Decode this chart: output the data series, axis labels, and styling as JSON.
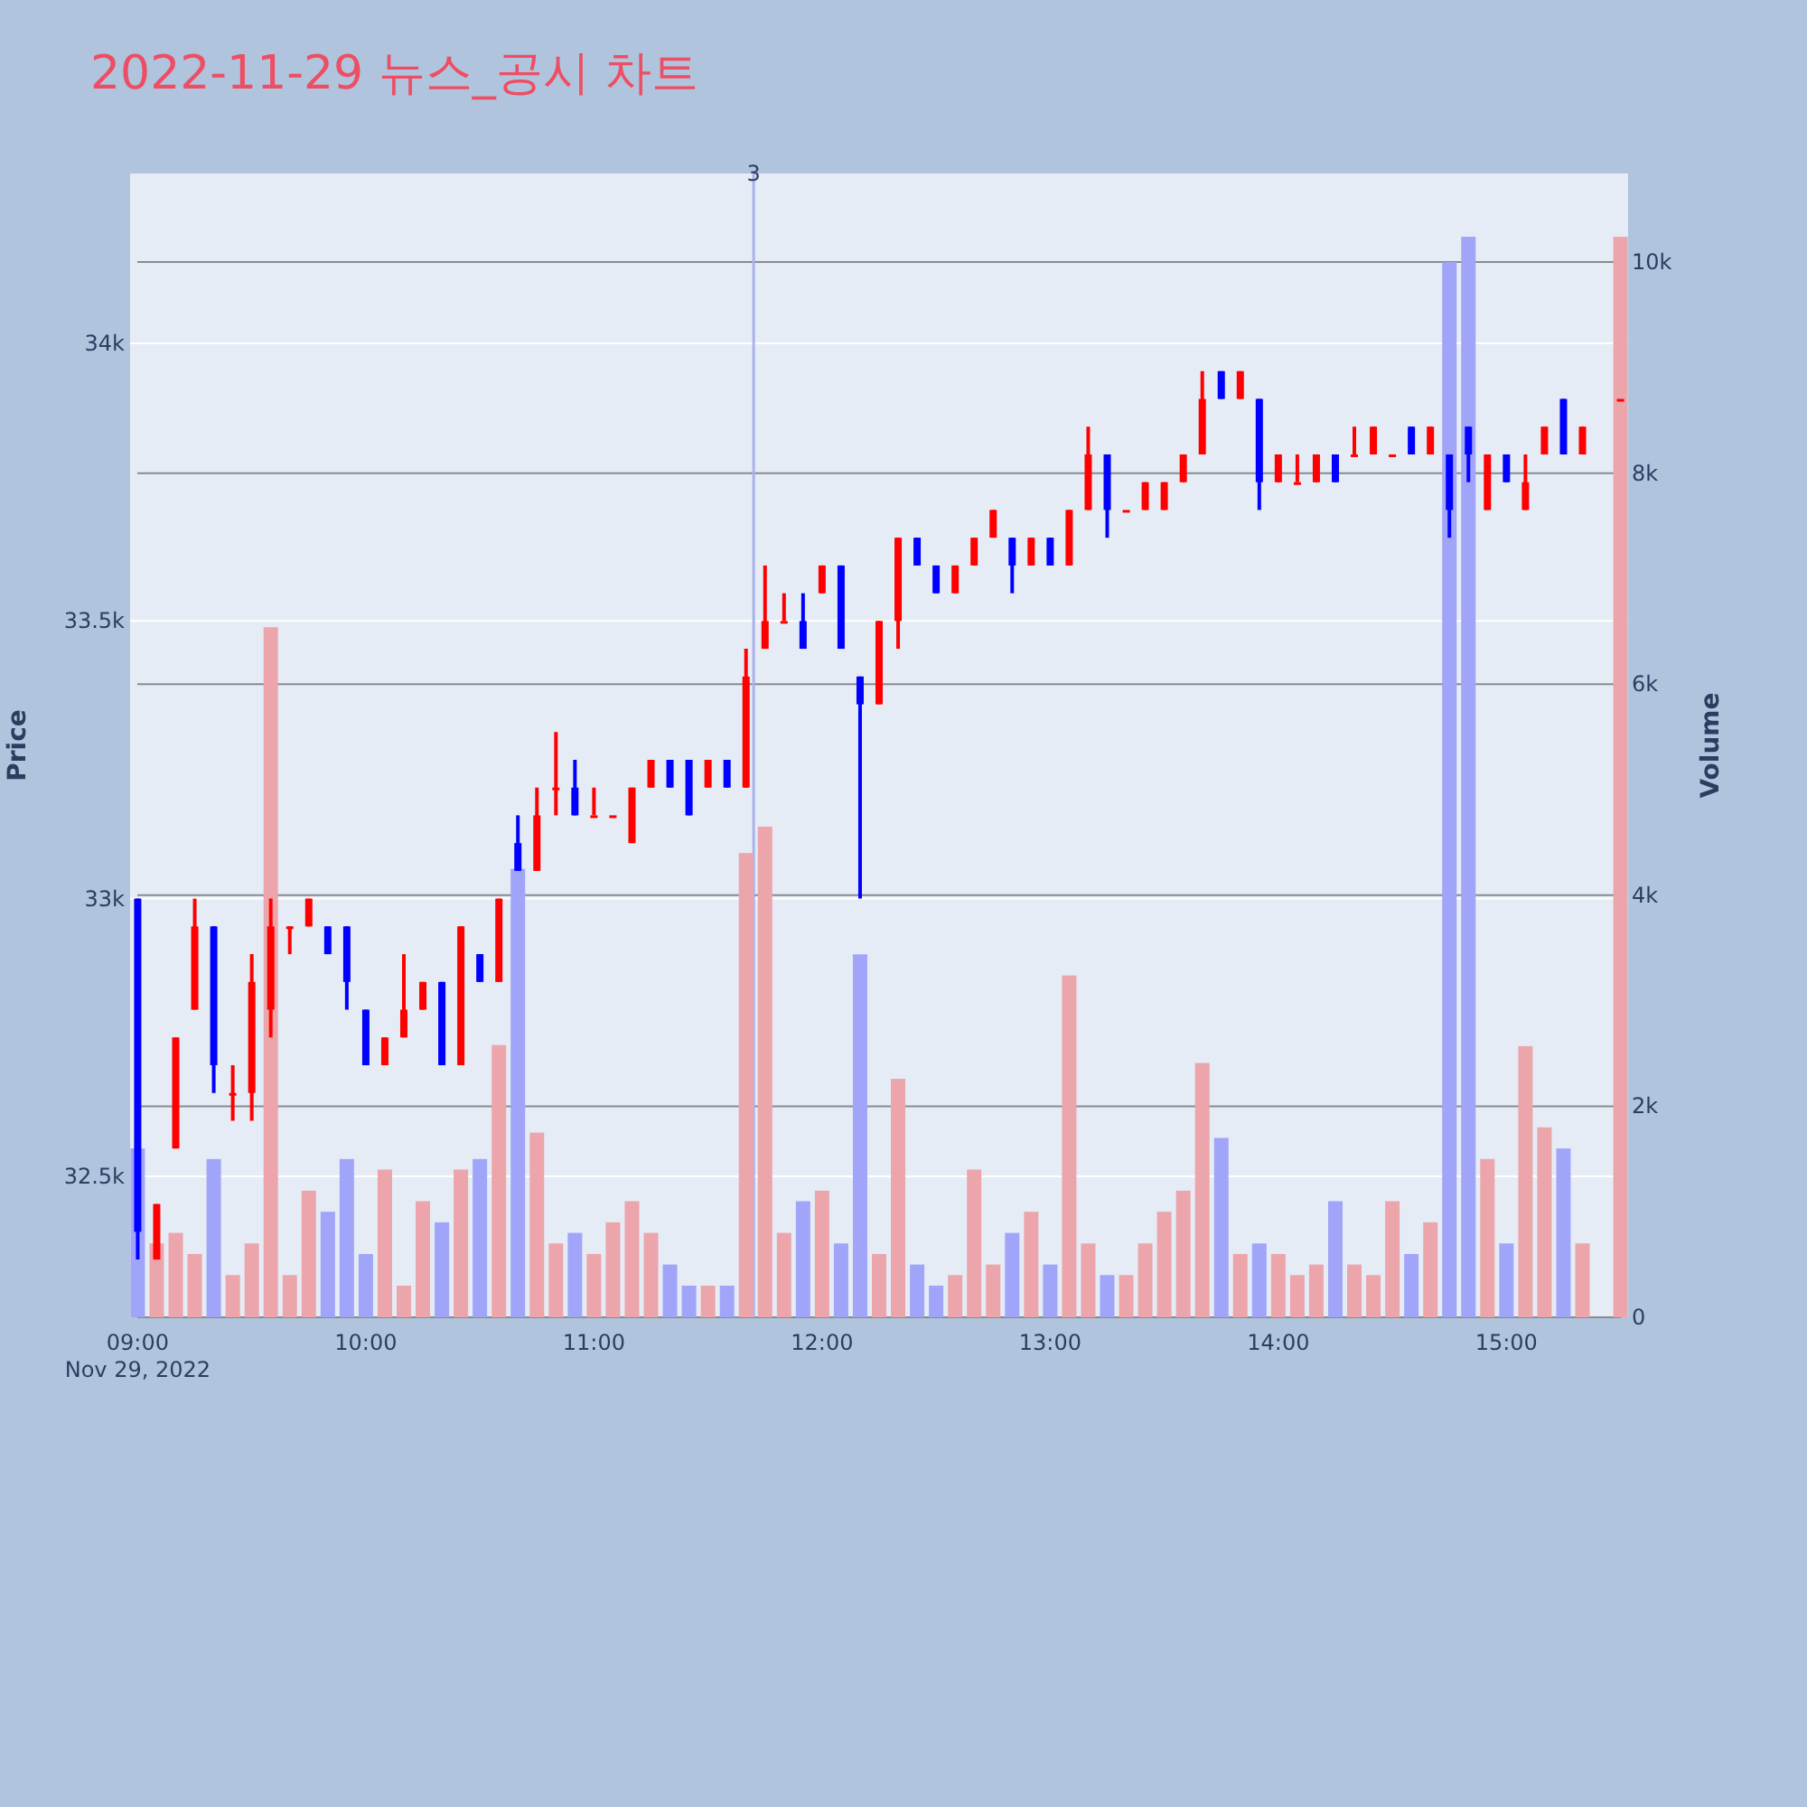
{
  "chart_data": {
    "type": "candlestick",
    "title": "2022-11-29 뉴스_공시 차트",
    "ylabel": "Price",
    "y2label": "Volume",
    "x": [
      "2022-11-29T09:00",
      "2022-11-29T09:05",
      "2022-11-29T09:10",
      "2022-11-29T09:15",
      "2022-11-29T09:20",
      "2022-11-29T09:25",
      "2022-11-29T09:30",
      "2022-11-29T09:35",
      "2022-11-29T09:40",
      "2022-11-29T09:45",
      "2022-11-29T09:50",
      "2022-11-29T09:55",
      "2022-11-29T10:00",
      "2022-11-29T10:05",
      "2022-11-29T10:10",
      "2022-11-29T10:15",
      "2022-11-29T10:20",
      "2022-11-29T10:25",
      "2022-11-29T10:30",
      "2022-11-29T10:35",
      "2022-11-29T10:40",
      "2022-11-29T10:45",
      "2022-11-29T10:50",
      "2022-11-29T10:55",
      "2022-11-29T11:00",
      "2022-11-29T11:05",
      "2022-11-29T11:10",
      "2022-11-29T11:15",
      "2022-11-29T11:20",
      "2022-11-29T11:25",
      "2022-11-29T11:30",
      "2022-11-29T11:35",
      "2022-11-29T11:40",
      "2022-11-29T11:45",
      "2022-11-29T11:50",
      "2022-11-29T11:55",
      "2022-11-29T12:00",
      "2022-11-29T12:05",
      "2022-11-29T12:10",
      "2022-11-29T12:15",
      "2022-11-29T12:20",
      "2022-11-29T12:25",
      "2022-11-29T12:30",
      "2022-11-29T12:35",
      "2022-11-29T12:40",
      "2022-11-29T12:45",
      "2022-11-29T12:50",
      "2022-11-29T12:55",
      "2022-11-29T13:00",
      "2022-11-29T13:05",
      "2022-11-29T13:10",
      "2022-11-29T13:15",
      "2022-11-29T13:20",
      "2022-11-29T13:25",
      "2022-11-29T13:30",
      "2022-11-29T13:35",
      "2022-11-29T13:40",
      "2022-11-29T13:45",
      "2022-11-29T13:50",
      "2022-11-29T13:55",
      "2022-11-29T14:00",
      "2022-11-29T14:05",
      "2022-11-29T14:10",
      "2022-11-29T14:15",
      "2022-11-29T14:20",
      "2022-11-29T14:25",
      "2022-11-29T14:30",
      "2022-11-29T14:35",
      "2022-11-29T14:40",
      "2022-11-29T14:45",
      "2022-11-29T14:50",
      "2022-11-29T14:55",
      "2022-11-29T15:00",
      "2022-11-29T15:05",
      "2022-11-29T15:10",
      "2022-11-29T15:15",
      "2022-11-29T15:20",
      "2022-11-29T15:30"
    ],
    "ohlc": [
      [
        33000,
        33000,
        32350,
        32400
      ],
      [
        32350,
        32450,
        32350,
        32450
      ],
      [
        32550,
        32750,
        32550,
        32750
      ],
      [
        32800,
        33000,
        32800,
        32950
      ],
      [
        32950,
        32950,
        32650,
        32700
      ],
      [
        32650,
        32700,
        32600,
        32650
      ],
      [
        32650,
        32900,
        32600,
        32850
      ],
      [
        32800,
        33000,
        32750,
        32950
      ],
      [
        32950,
        32950,
        32900,
        32950
      ],
      [
        32950,
        33000,
        32950,
        33000
      ],
      [
        32950,
        32950,
        32900,
        32900
      ],
      [
        32950,
        32950,
        32800,
        32850
      ],
      [
        32800,
        32800,
        32700,
        32700
      ],
      [
        32700,
        32750,
        32700,
        32750
      ],
      [
        32750,
        32900,
        32750,
        32800
      ],
      [
        32800,
        32850,
        32800,
        32850
      ],
      [
        32850,
        32850,
        32700,
        32700
      ],
      [
        32700,
        32950,
        32700,
        32950
      ],
      [
        32900,
        32900,
        32850,
        32850
      ],
      [
        32850,
        33000,
        32850,
        33000
      ],
      [
        33100,
        33150,
        33050,
        33050
      ],
      [
        33050,
        33200,
        33050,
        33150
      ],
      [
        33200,
        33300,
        33150,
        33200
      ],
      [
        33200,
        33250,
        33150,
        33150
      ],
      [
        33150,
        33200,
        33150,
        33150
      ],
      [
        33150,
        33150,
        33150,
        33150
      ],
      [
        33100,
        33200,
        33100,
        33200
      ],
      [
        33200,
        33250,
        33200,
        33250
      ],
      [
        33250,
        33250,
        33200,
        33200
      ],
      [
        33250,
        33250,
        33150,
        33150
      ],
      [
        33200,
        33250,
        33200,
        33250
      ],
      [
        33250,
        33250,
        33200,
        33200
      ],
      [
        33200,
        33450,
        33200,
        33400
      ],
      [
        33450,
        33600,
        33450,
        33500
      ],
      [
        33500,
        33550,
        33500,
        33500
      ],
      [
        33500,
        33550,
        33450,
        33450
      ],
      [
        33550,
        33600,
        33550,
        33600
      ],
      [
        33600,
        33600,
        33450,
        33450
      ],
      [
        33400,
        33400,
        33000,
        33350
      ],
      [
        33350,
        33500,
        33350,
        33500
      ],
      [
        33500,
        33650,
        33450,
        33650
      ],
      [
        33650,
        33650,
        33600,
        33600
      ],
      [
        33600,
        33600,
        33550,
        33550
      ],
      [
        33550,
        33600,
        33550,
        33600
      ],
      [
        33600,
        33650,
        33600,
        33650
      ],
      [
        33650,
        33700,
        33650,
        33700
      ],
      [
        33650,
        33650,
        33550,
        33600
      ],
      [
        33600,
        33650,
        33600,
        33650
      ],
      [
        33650,
        33650,
        33600,
        33600
      ],
      [
        33600,
        33700,
        33600,
        33700
      ],
      [
        33700,
        33850,
        33700,
        33800
      ],
      [
        33800,
        33800,
        33650,
        33700
      ],
      [
        33700,
        33700,
        33700,
        33700
      ],
      [
        33700,
        33750,
        33700,
        33750
      ],
      [
        33700,
        33750,
        33700,
        33750
      ],
      [
        33750,
        33800,
        33750,
        33800
      ],
      [
        33800,
        33950,
        33800,
        33900
      ],
      [
        33950,
        33950,
        33900,
        33900
      ],
      [
        33900,
        33950,
        33900,
        33950
      ],
      [
        33900,
        33900,
        33700,
        33750
      ],
      [
        33750,
        33800,
        33750,
        33800
      ],
      [
        33750,
        33800,
        33750,
        33750
      ],
      [
        33750,
        33800,
        33750,
        33800
      ],
      [
        33800,
        33800,
        33750,
        33750
      ],
      [
        33800,
        33850,
        33800,
        33800
      ],
      [
        33800,
        33850,
        33800,
        33850
      ],
      [
        33800,
        33800,
        33800,
        33800
      ],
      [
        33850,
        33850,
        33800,
        33800
      ],
      [
        33800,
        33850,
        33800,
        33850
      ],
      [
        33800,
        33800,
        33650,
        33700
      ],
      [
        33850,
        33850,
        33750,
        33800
      ],
      [
        33700,
        33800,
        33700,
        33800
      ],
      [
        33800,
        33800,
        33750,
        33750
      ],
      [
        33700,
        33800,
        33700,
        33750
      ],
      [
        33800,
        33850,
        33800,
        33850
      ],
      [
        33900,
        33900,
        33800,
        33800
      ],
      [
        33800,
        33850,
        33800,
        33850
      ],
      [
        33900,
        33900,
        33900,
        33900
      ]
    ],
    "colors": [
      "#0000ff",
      "#ff0000",
      "#ff0000",
      "#ff0000",
      "#0000ff",
      "#ff0000",
      "#ff0000",
      "#ff0000",
      "#ff0000",
      "#ff0000",
      "#0000ff",
      "#0000ff",
      "#0000ff",
      "#ff0000",
      "#ff0000",
      "#ff0000",
      "#0000ff",
      "#ff0000",
      "#0000ff",
      "#ff0000",
      "#0000ff",
      "#ff0000",
      "#ff0000",
      "#0000ff",
      "#ff0000",
      "#ff0000",
      "#ff0000",
      "#ff0000",
      "#0000ff",
      "#0000ff",
      "#ff0000",
      "#0000ff",
      "#ff0000",
      "#ff0000",
      "#ff0000",
      "#0000ff",
      "#ff0000",
      "#0000ff",
      "#0000ff",
      "#ff0000",
      "#ff0000",
      "#0000ff",
      "#0000ff",
      "#ff0000",
      "#ff0000",
      "#ff0000",
      "#0000ff",
      "#ff0000",
      "#0000ff",
      "#ff0000",
      "#ff0000",
      "#0000ff",
      "#ff0000",
      "#ff0000",
      "#ff0000",
      "#ff0000",
      "#ff0000",
      "#0000ff",
      "#ff0000",
      "#0000ff",
      "#ff0000",
      "#ff0000",
      "#ff0000",
      "#0000ff",
      "#ff0000",
      "#ff0000",
      "#ff0000",
      "#0000ff",
      "#ff0000",
      "#0000ff",
      "#0000ff",
      "#ff0000",
      "#0000ff",
      "#ff0000",
      "#ff0000",
      "#0000ff",
      "#ff0000",
      "#ff0000"
    ],
    "series": [
      {
        "type": "bar",
        "axis": "y2",
        "values": [
          1600,
          700,
          800,
          600,
          1500,
          400,
          700,
          6540,
          400,
          1200,
          1000,
          1500,
          600,
          1400,
          300,
          1100,
          900,
          1400,
          1500,
          2580,
          4250,
          1750,
          700,
          800,
          600,
          900,
          1100,
          800,
          500,
          300,
          300,
          300,
          4400,
          4650,
          800,
          1100,
          1200,
          700,
          3440,
          600,
          2260,
          500,
          300,
          400,
          1400,
          500,
          800,
          1000,
          500,
          3240,
          700,
          400,
          400,
          700,
          1000,
          1200,
          2410,
          1700,
          600,
          700,
          600,
          400,
          500,
          1100,
          500,
          400,
          1100,
          600,
          900,
          10000,
          10240,
          1500,
          700,
          2570,
          1800,
          1600,
          700,
          10240
        ],
        "colors": [
          "#a0a5f9",
          "#eda5ac",
          "#eda5ac",
          "#eda5ac",
          "#a0a5f9",
          "#eda5ac",
          "#eda5ac",
          "#eda5ac",
          "#eda5ac",
          "#eda5ac",
          "#a0a5f9",
          "#a0a5f9",
          "#a0a5f9",
          "#eda5ac",
          "#eda5ac",
          "#eda5ac",
          "#a0a5f9",
          "#eda5ac",
          "#a0a5f9",
          "#eda5ac",
          "#a0a5f9",
          "#eda5ac",
          "#eda5ac",
          "#a0a5f9",
          "#eda5ac",
          "#eda5ac",
          "#eda5ac",
          "#eda5ac",
          "#a0a5f9",
          "#a0a5f9",
          "#eda5ac",
          "#a0a5f9",
          "#eda5ac",
          "#eda5ac",
          "#eda5ac",
          "#a0a5f9",
          "#eda5ac",
          "#a0a5f9",
          "#a0a5f9",
          "#eda5ac",
          "#eda5ac",
          "#a0a5f9",
          "#a0a5f9",
          "#eda5ac",
          "#eda5ac",
          "#eda5ac",
          "#a0a5f9",
          "#eda5ac",
          "#a0a5f9",
          "#eda5ac",
          "#eda5ac",
          "#a0a5f9",
          "#eda5ac",
          "#eda5ac",
          "#eda5ac",
          "#eda5ac",
          "#eda5ac",
          "#a0a5f9",
          "#eda5ac",
          "#a0a5f9",
          "#eda5ac",
          "#eda5ac",
          "#eda5ac",
          "#a0a5f9",
          "#eda5ac",
          "#eda5ac",
          "#eda5ac",
          "#a0a5f9",
          "#eda5ac",
          "#a0a5f9",
          "#a0a5f9",
          "#eda5ac",
          "#a0a5f9",
          "#eda5ac",
          "#eda5ac",
          "#a0a5f9",
          "#eda5ac",
          "#eda5ac"
        ]
      }
    ],
    "xlim": [
      "2022-11-29T08:58",
      "2022-11-29T15:32"
    ],
    "xticks": [
      {
        "value": "2022-11-29T09:00",
        "label": "09:00\nNov 29, 2022"
      },
      {
        "value": "2022-11-29T10:00",
        "label": "10:00"
      },
      {
        "value": "2022-11-29T11:00",
        "label": "11:00"
      },
      {
        "value": "2022-11-29T12:00",
        "label": "12:00"
      },
      {
        "value": "2022-11-29T13:00",
        "label": "13:00"
      },
      {
        "value": "2022-11-29T14:00",
        "label": "14:00"
      },
      {
        "value": "2022-11-29T15:00",
        "label": "15:00"
      }
    ],
    "ylim": [
      32246,
      34306
    ],
    "yticks": [
      {
        "value": 32500,
        "label": "32.5k"
      },
      {
        "value": 33000,
        "label": "33k"
      },
      {
        "value": 33500,
        "label": "33.5k"
      },
      {
        "value": 34000,
        "label": "34k"
      }
    ],
    "y2lim": [
      0,
      10840
    ],
    "y2ticks": [
      0,
      {
        "value": 2000,
        "label": "2k"
      },
      {
        "value": 4000,
        "label": "4k"
      },
      {
        "value": 6000,
        "label": "6k"
      },
      {
        "value": 8000,
        "label": "8k"
      },
      {
        "value": 10000,
        "label": "10k"
      }
    ],
    "ref_lines": [
      {
        "axis": "x",
        "value": "2022-11-29T11:42",
        "label": "3",
        "color": "#aab2ec"
      }
    ],
    "grid": true
  }
}
